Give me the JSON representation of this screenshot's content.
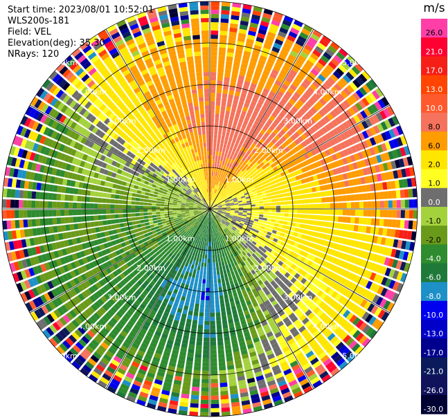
{
  "header": {
    "start_time": "Start time: 2023/08/01 10:52:01",
    "instrument": "WLS200s-181",
    "field": "Field: VEL",
    "elevation": "Elevation(deg): 35.30",
    "nrays": "NRays: 120"
  },
  "colorbar": {
    "unit": "m/s",
    "bins": [
      {
        "label": "26.0",
        "color": "#ff3fa7"
      },
      {
        "label": "21.0",
        "color": "#ff0033"
      },
      {
        "label": "17.0",
        "color": "#f61f17"
      },
      {
        "label": "13.0",
        "color": "#ff4500"
      },
      {
        "label": "10.0",
        "color": "#ff5a2e"
      },
      {
        "label": "8.0",
        "color": "#f5735c"
      },
      {
        "label": "6.0",
        "color": "#ff9c00"
      },
      {
        "label": "2.0",
        "color": "#ffe600"
      },
      {
        "label": "1.0",
        "color": "#ffff22"
      },
      {
        "label": "0.0",
        "color": "#6e6e6e"
      },
      {
        "label": "-1.0",
        "color": "#a4d23c"
      },
      {
        "label": "-2.0",
        "color": "#6a9a1a"
      },
      {
        "label": "-4.0",
        "color": "#2e8b2e"
      },
      {
        "label": "-6.0",
        "color": "#1f7a3a"
      },
      {
        "label": "-8.0",
        "color": "#1e90c8"
      },
      {
        "label": "-10.0",
        "color": "#0000ee"
      },
      {
        "label": "-13.0",
        "color": "#0000c8"
      },
      {
        "label": "-17.0",
        "color": "#00008e"
      },
      {
        "label": "-21.0",
        "color": "#0a1a5a"
      },
      {
        "label": "-26.0",
        "color": "#11125c"
      },
      {
        "label": "-30.0",
        "color": "#000033"
      }
    ]
  },
  "chart_data": {
    "type": "heatmap",
    "projection": "polar-ppi",
    "field": "VEL",
    "unit": "m/s",
    "nrays": 120,
    "range_rings_km": [
      1,
      2,
      3,
      4,
      5
    ],
    "range_labels": [
      "1.00km",
      "2.00km",
      "3.00km",
      "4.00km",
      "5.00km"
    ],
    "max_range_km": 5.0,
    "sector_spokes": 12,
    "pattern_azimuth_deg": [
      0,
      30,
      60,
      90,
      120,
      150,
      180,
      210,
      240,
      270,
      300,
      330
    ],
    "pattern_velocity_mps": [
      [
        6,
        8,
        9,
        8,
        6,
        6
      ],
      [
        2,
        8,
        9,
        9,
        7,
        7
      ],
      [
        1,
        2,
        6,
        9,
        9,
        7
      ],
      [
        1,
        1,
        2,
        6,
        7,
        7
      ],
      [
        0,
        1,
        2,
        2,
        3,
        3
      ],
      [
        -1,
        -2,
        -1,
        0,
        2,
        2
      ],
      [
        -4,
        -6,
        -8,
        -6,
        -2,
        -2
      ],
      [
        -2,
        -4,
        -6,
        -4,
        -2,
        -2
      ],
      [
        -1,
        -2,
        -2,
        -2,
        -2,
        -2
      ],
      [
        -1,
        -1,
        -2,
        -2,
        -2,
        -2
      ],
      [
        0,
        -1,
        0,
        0,
        -2,
        -2
      ],
      [
        1,
        2,
        6,
        6,
        6,
        6
      ]
    ],
    "noise_start_km": 4.5
  }
}
